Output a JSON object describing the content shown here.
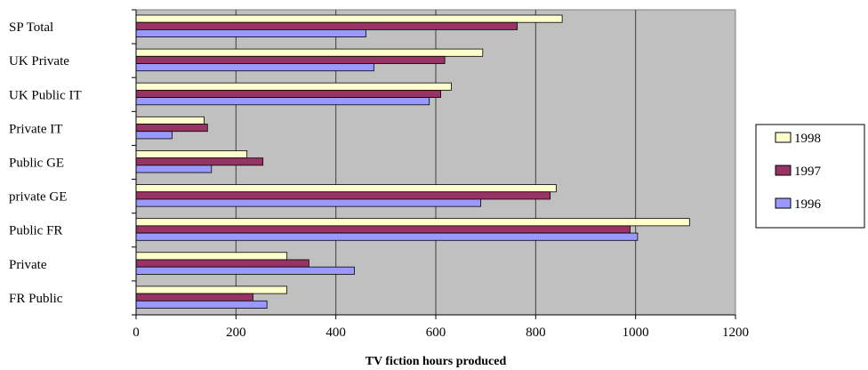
{
  "chart_data": {
    "type": "bar",
    "orientation": "horizontal",
    "title": "",
    "xlabel": "TV fiction hours produced",
    "ylabel": "",
    "xlim": [
      0,
      1200
    ],
    "xticks": [
      0,
      200,
      400,
      600,
      800,
      1000,
      1200
    ],
    "grid": "vertical",
    "legend_position": "right",
    "categories": [
      "SP Total",
      "UK Private",
      "UK Public IT",
      "Private IT",
      "Public GE",
      "private GE",
      "Public FR",
      "Private",
      "FR Public"
    ],
    "series": [
      {
        "name": "1998",
        "color": "#ffffcc",
        "values": [
          853,
          694,
          631,
          136,
          222,
          841,
          1108,
          302,
          302
        ]
      },
      {
        "name": "1997",
        "color": "#993366",
        "values": [
          763,
          618,
          610,
          143,
          254,
          829,
          989,
          346,
          234
        ]
      },
      {
        "name": "1996",
        "color": "#9999ff",
        "values": [
          460,
          476,
          587,
          72,
          151,
          690,
          1004,
          437,
          262
        ]
      }
    ],
    "legend_order": [
      "1998",
      "1997",
      "1996"
    ],
    "plot_background": "#c0c0c0"
  }
}
